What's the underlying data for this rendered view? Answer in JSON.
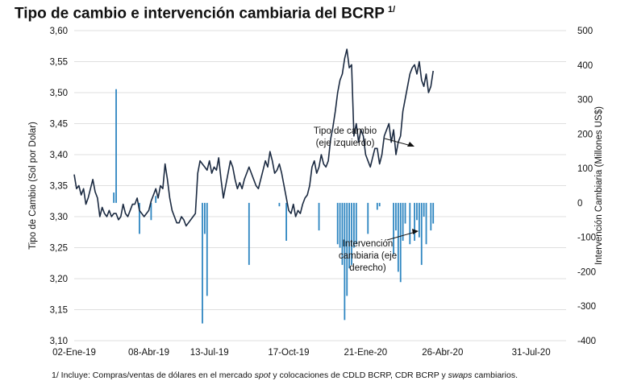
{
  "title": "Tipo de cambio e intervención cambiaria del BCRP",
  "title_superscript": "1/",
  "footnote": {
    "prefix": "1/ Incluye: Compras/ventas de dólares en el mercado ",
    "em1": "spot",
    "mid": " y colocaciones de CDLD BCRP, CDR BCRP y ",
    "em2": "swaps",
    "suffix": " cambiarios."
  },
  "chart_data": {
    "type": "line+bar",
    "left_axis": {
      "label": "Tipo de Cambio (Sol por Dolar)",
      "range": [
        3.1,
        3.6
      ],
      "ticks": [
        "3,10",
        "3,15",
        "3,20",
        "3,25",
        "3,30",
        "3,35",
        "3,40",
        "3,45",
        "3,50",
        "3,55",
        "3,60"
      ]
    },
    "right_axis": {
      "label": "Intervención Cambiaria (Millones US$)",
      "range": [
        -400,
        500
      ],
      "ticks": [
        "-400",
        "-300",
        "-200",
        "-100",
        "0",
        "100",
        "200",
        "300",
        "400",
        "500"
      ]
    },
    "x_axis": {
      "range_days": [
        0,
        211
      ],
      "ticks": [
        {
          "day": 0,
          "label": "02-Ene-19"
        },
        {
          "day": 32,
          "label": "08-Abr-19"
        },
        {
          "day": 58,
          "label": "13-Jul-19"
        },
        {
          "day": 92,
          "label": "17-Oct-19"
        },
        {
          "day": 125,
          "label": "21-Ene-20"
        },
        {
          "day": 158,
          "label": "26-Abr-20"
        },
        {
          "day": 196,
          "label": "31-Jul-20"
        }
      ]
    },
    "grid": "horizontal",
    "series_exchange": {
      "axis": "left",
      "color": "#1b2a41",
      "points": [
        [
          0,
          3.368
        ],
        [
          1,
          3.345
        ],
        [
          2,
          3.35
        ],
        [
          3,
          3.335
        ],
        [
          4,
          3.345
        ],
        [
          5,
          3.32
        ],
        [
          6,
          3.33
        ],
        [
          7,
          3.345
        ],
        [
          8,
          3.36
        ],
        [
          9,
          3.34
        ],
        [
          10,
          3.33
        ],
        [
          11,
          3.3
        ],
        [
          12,
          3.315
        ],
        [
          13,
          3.305
        ],
        [
          14,
          3.3
        ],
        [
          15,
          3.31
        ],
        [
          16,
          3.3
        ],
        [
          17,
          3.305
        ],
        [
          18,
          3.305
        ],
        [
          19,
          3.295
        ],
        [
          20,
          3.3
        ],
        [
          21,
          3.32
        ],
        [
          22,
          3.305
        ],
        [
          23,
          3.3
        ],
        [
          24,
          3.31
        ],
        [
          25,
          3.32
        ],
        [
          26,
          3.32
        ],
        [
          27,
          3.33
        ],
        [
          28,
          3.31
        ],
        [
          29,
          3.305
        ],
        [
          30,
          3.3
        ],
        [
          31,
          3.305
        ],
        [
          32,
          3.31
        ],
        [
          33,
          3.325
        ],
        [
          34,
          3.335
        ],
        [
          35,
          3.345
        ],
        [
          36,
          3.33
        ],
        [
          37,
          3.35
        ],
        [
          38,
          3.345
        ],
        [
          39,
          3.385
        ],
        [
          40,
          3.36
        ],
        [
          41,
          3.33
        ],
        [
          42,
          3.31
        ],
        [
          43,
          3.3
        ],
        [
          44,
          3.29
        ],
        [
          45,
          3.29
        ],
        [
          46,
          3.3
        ],
        [
          47,
          3.295
        ],
        [
          48,
          3.285
        ],
        [
          49,
          3.29
        ],
        [
          50,
          3.295
        ],
        [
          51,
          3.3
        ],
        [
          52,
          3.305
        ],
        [
          53,
          3.37
        ],
        [
          54,
          3.39
        ],
        [
          55,
          3.385
        ],
        [
          56,
          3.38
        ],
        [
          57,
          3.375
        ],
        [
          58,
          3.39
        ],
        [
          59,
          3.37
        ],
        [
          60,
          3.38
        ],
        [
          61,
          3.375
        ],
        [
          62,
          3.395
        ],
        [
          63,
          3.36
        ],
        [
          64,
          3.33
        ],
        [
          65,
          3.35
        ],
        [
          66,
          3.37
        ],
        [
          67,
          3.39
        ],
        [
          68,
          3.38
        ],
        [
          69,
          3.36
        ],
        [
          70,
          3.345
        ],
        [
          71,
          3.355
        ],
        [
          72,
          3.345
        ],
        [
          73,
          3.36
        ],
        [
          74,
          3.37
        ],
        [
          75,
          3.38
        ],
        [
          76,
          3.37
        ],
        [
          77,
          3.36
        ],
        [
          78,
          3.35
        ],
        [
          79,
          3.345
        ],
        [
          80,
          3.36
        ],
        [
          81,
          3.375
        ],
        [
          82,
          3.39
        ],
        [
          83,
          3.38
        ],
        [
          84,
          3.405
        ],
        [
          85,
          3.39
        ],
        [
          86,
          3.37
        ],
        [
          87,
          3.375
        ],
        [
          88,
          3.385
        ],
        [
          89,
          3.37
        ],
        [
          90,
          3.35
        ],
        [
          91,
          3.33
        ],
        [
          92,
          3.31
        ],
        [
          93,
          3.305
        ],
        [
          94,
          3.32
        ],
        [
          95,
          3.3
        ],
        [
          96,
          3.31
        ],
        [
          97,
          3.305
        ],
        [
          98,
          3.32
        ],
        [
          99,
          3.33
        ],
        [
          100,
          3.335
        ],
        [
          101,
          3.35
        ],
        [
          102,
          3.38
        ],
        [
          103,
          3.39
        ],
        [
          104,
          3.37
        ],
        [
          105,
          3.38
        ],
        [
          106,
          3.4
        ],
        [
          107,
          3.385
        ],
        [
          108,
          3.38
        ],
        [
          109,
          3.39
        ],
        [
          110,
          3.425
        ],
        [
          111,
          3.445
        ],
        [
          112,
          3.47
        ],
        [
          113,
          3.5
        ],
        [
          114,
          3.52
        ],
        [
          115,
          3.53
        ],
        [
          116,
          3.555
        ],
        [
          117,
          3.57
        ],
        [
          118,
          3.54
        ],
        [
          119,
          3.545
        ],
        [
          120,
          3.43
        ],
        [
          121,
          3.45
        ],
        [
          122,
          3.42
        ],
        [
          123,
          3.44
        ],
        [
          124,
          3.43
        ],
        [
          125,
          3.4
        ],
        [
          126,
          3.39
        ],
        [
          127,
          3.38
        ],
        [
          128,
          3.395
        ],
        [
          129,
          3.41
        ],
        [
          130,
          3.41
        ],
        [
          131,
          3.385
        ],
        [
          132,
          3.4
        ],
        [
          133,
          3.43
        ],
        [
          134,
          3.44
        ],
        [
          135,
          3.45
        ],
        [
          136,
          3.42
        ],
        [
          137,
          3.44
        ],
        [
          138,
          3.4
        ],
        [
          139,
          3.42
        ],
        [
          140,
          3.43
        ],
        [
          141,
          3.47
        ],
        [
          142,
          3.49
        ],
        [
          143,
          3.51
        ],
        [
          144,
          3.53
        ],
        [
          145,
          3.54
        ],
        [
          146,
          3.545
        ],
        [
          147,
          3.53
        ],
        [
          148,
          3.55
        ],
        [
          149,
          3.52
        ],
        [
          150,
          3.51
        ],
        [
          151,
          3.53
        ],
        [
          152,
          3.5
        ],
        [
          153,
          3.51
        ],
        [
          154,
          3.535
        ]
      ]
    },
    "series_intervention": {
      "axis": "right",
      "color": "#2e86c1",
      "bars": [
        [
          17,
          30
        ],
        [
          18,
          330
        ],
        [
          28,
          -90
        ],
        [
          33,
          -50
        ],
        [
          35,
          20
        ],
        [
          55,
          -350
        ],
        [
          56,
          -90
        ],
        [
          57,
          -270
        ],
        [
          75,
          -180
        ],
        [
          88,
          -10
        ],
        [
          91,
          -110
        ],
        [
          105,
          -80
        ],
        [
          113,
          -120
        ],
        [
          114,
          -130
        ],
        [
          115,
          -180
        ],
        [
          116,
          -340
        ],
        [
          117,
          -270
        ],
        [
          118,
          -190
        ],
        [
          119,
          -180
        ],
        [
          120,
          -130
        ],
        [
          121,
          -120
        ],
        [
          126,
          -90
        ],
        [
          130,
          -20
        ],
        [
          131,
          -10
        ],
        [
          137,
          -150
        ],
        [
          138,
          -80
        ],
        [
          139,
          -200
        ],
        [
          140,
          -230
        ],
        [
          141,
          -110
        ],
        [
          142,
          -60
        ],
        [
          144,
          -120
        ],
        [
          146,
          -110
        ],
        [
          147,
          -50
        ],
        [
          148,
          -100
        ],
        [
          149,
          -180
        ],
        [
          150,
          -40
        ],
        [
          151,
          -120
        ],
        [
          153,
          -80
        ],
        [
          154,
          -60
        ]
      ]
    },
    "annotations": [
      {
        "label_line1": "Tipo de cambio",
        "label_line2": "(eje izquierdo)"
      },
      {
        "label_line1": "Intervención",
        "label_line2": "cambiaria (eje",
        "label_line3": "derecho)"
      }
    ]
  }
}
